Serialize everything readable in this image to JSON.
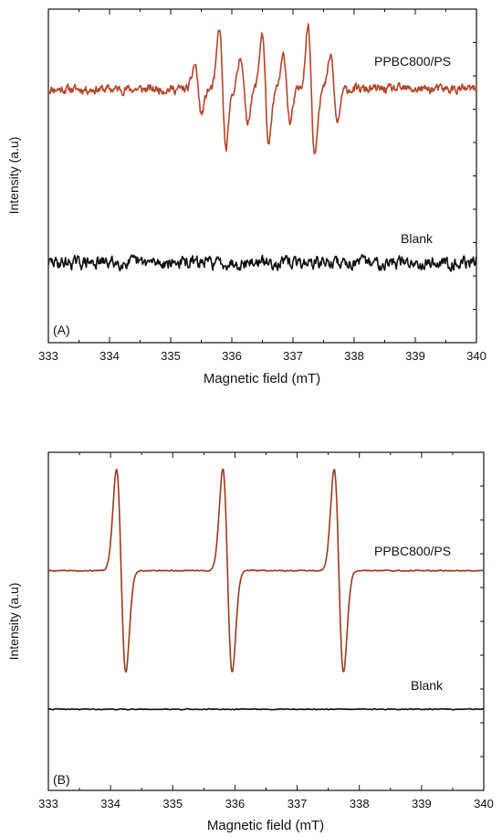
{
  "chart_data": [
    {
      "type": "line",
      "panel_label": "(A)",
      "xlabel": "Magnetic field (mT)",
      "ylabel": "Intensity (a.u)",
      "xlim": [
        333,
        340
      ],
      "xticks": [
        "333",
        "334",
        "335",
        "336",
        "337",
        "338",
        "339",
        "340"
      ],
      "grid": false,
      "legend": "none",
      "series": [
        {
          "name": "PPBC800/PS",
          "color": "#b5452a",
          "baseline_level": 0.76,
          "noise_amplitude": 0.012,
          "noise_seed": 11,
          "peaks": [
            {
              "x": 335.45,
              "amp": 0.075,
              "w": 0.055
            },
            {
              "x": 335.85,
              "amp": 0.18,
              "w": 0.055
            },
            {
              "x": 336.2,
              "amp": 0.1,
              "w": 0.055
            },
            {
              "x": 336.55,
              "amp": 0.17,
              "w": 0.055
            },
            {
              "x": 336.9,
              "amp": 0.1,
              "w": 0.055
            },
            {
              "x": 337.3,
              "amp": 0.19,
              "w": 0.055
            },
            {
              "x": 337.67,
              "amp": 0.1,
              "w": 0.055
            }
          ]
        },
        {
          "name": "Blank",
          "color": "#111111",
          "baseline_level": 0.24,
          "noise_amplitude": 0.016,
          "noise_seed": 29,
          "peaks": []
        }
      ]
    },
    {
      "type": "line",
      "panel_label": "(B)",
      "xlabel": "Magnetic field (mT)",
      "ylabel": "Intensity (a.u)",
      "xlim": [
        333,
        340
      ],
      "xticks": [
        "333",
        "334",
        "335",
        "336",
        "337",
        "338",
        "339",
        "340"
      ],
      "grid": false,
      "legend": "none",
      "series": [
        {
          "name": "PPBC800/PS",
          "color": "#9a3a1f",
          "baseline_level": 0.65,
          "noise_amplitude": 0.0015,
          "noise_seed": 5,
          "peaks": [
            {
              "x": 334.17,
              "amp": 0.3,
              "w": 0.075
            },
            {
              "x": 335.88,
              "amp": 0.3,
              "w": 0.075
            },
            {
              "x": 337.67,
              "amp": 0.3,
              "w": 0.075
            }
          ]
        },
        {
          "name": "Blank",
          "color": "#111111",
          "baseline_level": 0.24,
          "noise_amplitude": 0.0012,
          "noise_seed": 41,
          "peaks": []
        }
      ]
    }
  ]
}
